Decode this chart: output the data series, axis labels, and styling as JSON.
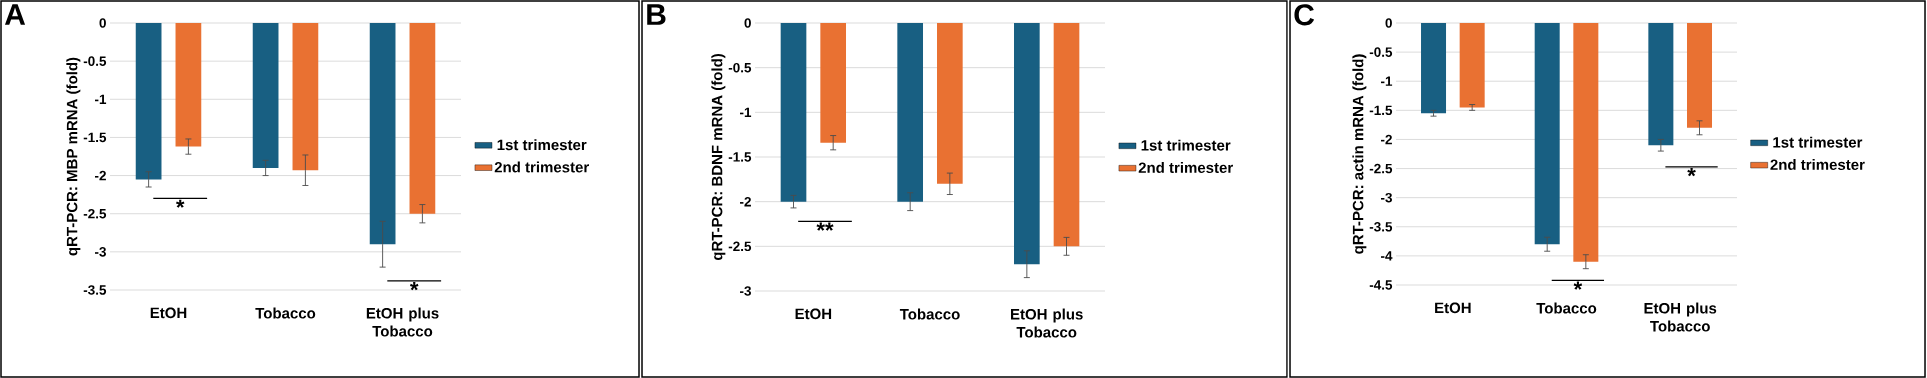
{
  "chart_data": [
    {
      "type": "bar",
      "title": "A",
      "ylabel": "qRT-PCR: MBP mRNA (fold)",
      "categories": [
        "EtOH",
        "Tobacco",
        "EtOH plus Tobacco"
      ],
      "ylim": [
        -3.5,
        0
      ],
      "yticks": [
        0,
        -0.5,
        -1,
        -1.5,
        -2,
        -2.5,
        -3,
        -3.5
      ],
      "grid": "y",
      "legend": "right",
      "series": [
        {
          "name": "1st trimester",
          "color": "#185f82",
          "values": [
            -2.05,
            -1.9,
            -2.9
          ],
          "errors": [
            0.1,
            0.1,
            0.3
          ]
        },
        {
          "name": "2nd trimester",
          "color": "#e97132",
          "values": [
            -1.62,
            -1.93,
            -2.5
          ],
          "errors": [
            0.1,
            0.2,
            0.12
          ]
        }
      ],
      "annotations": [
        "*",
        "*"
      ]
    },
    {
      "type": "bar",
      "title": "B",
      "ylabel": "qRT-PCR: BDNF mRNA (fold)",
      "categories": [
        "EtOH",
        "Tobacco",
        "EtOH plus Tobacco"
      ],
      "ylim": [
        -3,
        0
      ],
      "yticks": [
        0,
        -0.5,
        -1,
        -1.5,
        -2,
        -2.5,
        -3
      ],
      "grid": "y",
      "legend": "right",
      "series": [
        {
          "name": "1st trimester",
          "color": "#185f82",
          "values": [
            -2.0,
            -2.0,
            -2.7
          ],
          "errors": [
            0.07,
            0.1,
            0.15
          ]
        },
        {
          "name": "2nd trimester",
          "color": "#e97132",
          "values": [
            -1.34,
            -1.8,
            -2.5
          ],
          "errors": [
            0.08,
            0.12,
            0.1
          ]
        }
      ],
      "annotations": [
        "**"
      ]
    },
    {
      "type": "bar",
      "title": "C",
      "ylabel": "qRT-PCR: actin mRNA (fold)",
      "categories": [
        "EtOH",
        "Tobacco",
        "EtOH plus Tobacco"
      ],
      "ylim": [
        -4.5,
        0
      ],
      "yticks": [
        0,
        -0.5,
        -1,
        -1.5,
        -2,
        -2.5,
        -3,
        -3.5,
        -4,
        -4.5
      ],
      "grid": "y",
      "legend": "right",
      "series": [
        {
          "name": "1st trimester",
          "color": "#185f82",
          "values": [
            -1.55,
            -3.8,
            -2.1
          ],
          "errors": [
            0.05,
            0.12,
            0.1
          ]
        },
        {
          "name": "2nd trimester",
          "color": "#e97132",
          "values": [
            -1.45,
            -4.1,
            -1.8
          ],
          "errors": [
            0.05,
            0.12,
            0.12
          ]
        }
      ],
      "annotations": [
        "*",
        "*"
      ]
    }
  ]
}
